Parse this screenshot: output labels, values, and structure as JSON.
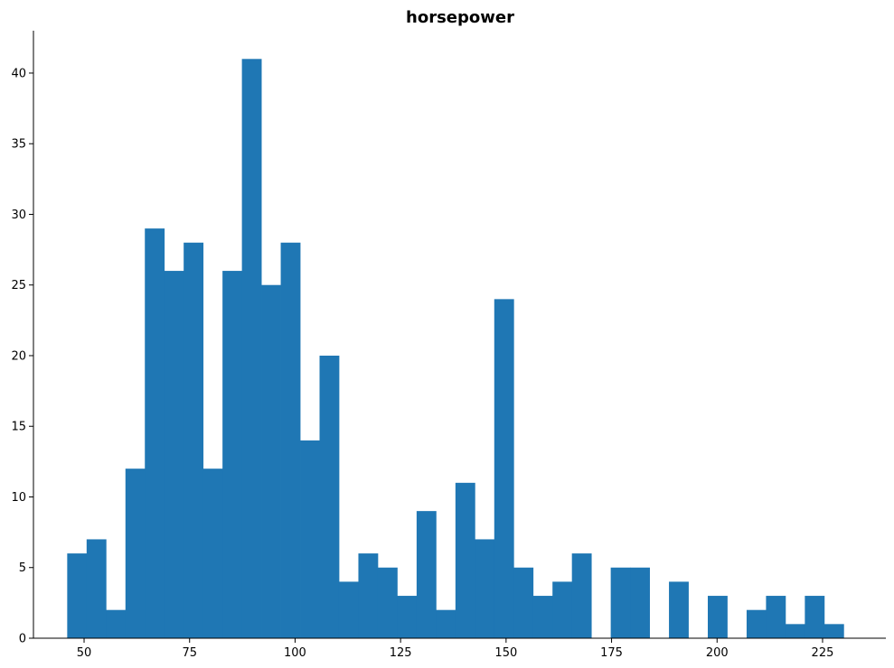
{
  "chart_data": {
    "type": "bar",
    "title": "horsepower",
    "xlabel": "",
    "ylabel": "",
    "bin_start": 46,
    "bin_width": 4.6,
    "values": [
      6,
      7,
      2,
      12,
      29,
      26,
      28,
      12,
      26,
      41,
      25,
      28,
      14,
      20,
      4,
      6,
      5,
      3,
      9,
      2,
      11,
      7,
      24,
      5,
      3,
      4,
      6,
      0,
      5,
      5,
      0,
      4,
      0,
      3,
      0,
      2,
      3,
      1,
      3,
      1
    ],
    "xlim": [
      38,
      240
    ],
    "ylim": [
      0,
      43
    ],
    "xticks": [
      50,
      75,
      100,
      125,
      150,
      175,
      200,
      225
    ],
    "yticks": [
      0,
      5,
      10,
      15,
      20,
      25,
      30,
      35,
      40
    ],
    "bar_color": "#1f77b4",
    "grid": false,
    "spines": [
      "left",
      "bottom"
    ]
  }
}
